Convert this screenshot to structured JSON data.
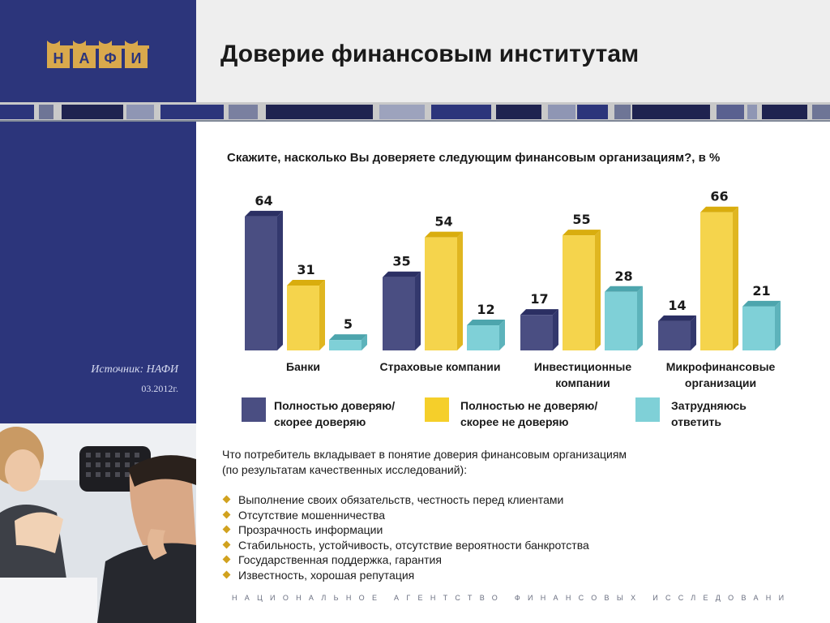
{
  "header": {
    "title": "Доверие финансовым институтам",
    "logo_letters": [
      "Н",
      "А",
      "Ф",
      "И"
    ]
  },
  "sidebar": {
    "source": "Источник: НАФИ",
    "date": "03.2012г."
  },
  "colors": {
    "navy": "#2c357b",
    "series_trust": "#4a4e82",
    "series_distrust": "#f5d44c",
    "series_unsure": "#7fd0d7"
  },
  "chart_data": {
    "type": "bar",
    "title": "Скажите, насколько Вы доверяете следующим финансовым организациям?, в %",
    "categories": [
      "Банки",
      "Страховые компании",
      "Инвестиционные компании",
      "Микрофинансовые организации"
    ],
    "category_lines": [
      [
        "Банки"
      ],
      [
        "Страховые компании"
      ],
      [
        "Инвестиционные",
        "компании"
      ],
      [
        "Микрофинансовые",
        "организации"
      ]
    ],
    "series": [
      {
        "name": "Полностью доверяю/ скорее доверяю",
        "values": [
          64,
          35,
          17,
          14
        ],
        "color": "#4a4e82"
      },
      {
        "name": "Полностью не доверяю/ скорее не доверяю",
        "values": [
          31,
          54,
          55,
          66
        ],
        "color": "#f5d44c"
      },
      {
        "name": "Затрудняюсь ответить",
        "values": [
          5,
          12,
          28,
          21
        ],
        "color": "#7fd0d7"
      }
    ],
    "ylim": [
      0,
      70
    ],
    "grid": false,
    "legend_position": "bottom"
  },
  "legend": [
    {
      "line1": "Полностью доверяю/",
      "line2": "скорее доверяю"
    },
    {
      "line1": "Полностью не доверяю/",
      "line2": "скорее не доверяю"
    },
    {
      "line1": "Затрудняюсь",
      "line2": "ответить"
    }
  ],
  "body": {
    "intro_line1": "Что потребитель вкладывает в понятие доверия финансовым организациям",
    "intro_line2": "(по результатам качественных исследований):",
    "bullets": [
      "Выполнение своих обязательств, честность перед клиентами",
      "Отсутствие мошенничества",
      "Прозрачность  информации",
      "Стабильность, устойчивость, отсутствие вероятности банкротства",
      "Государственная поддержка, гарантия",
      "Известность, хорошая репутация"
    ]
  },
  "footer": "НАЦИОНАЛЬНОЕ АГЕНТСТВО ФИНАНСОВЫХ ИССЛЕДОВАНИ"
}
